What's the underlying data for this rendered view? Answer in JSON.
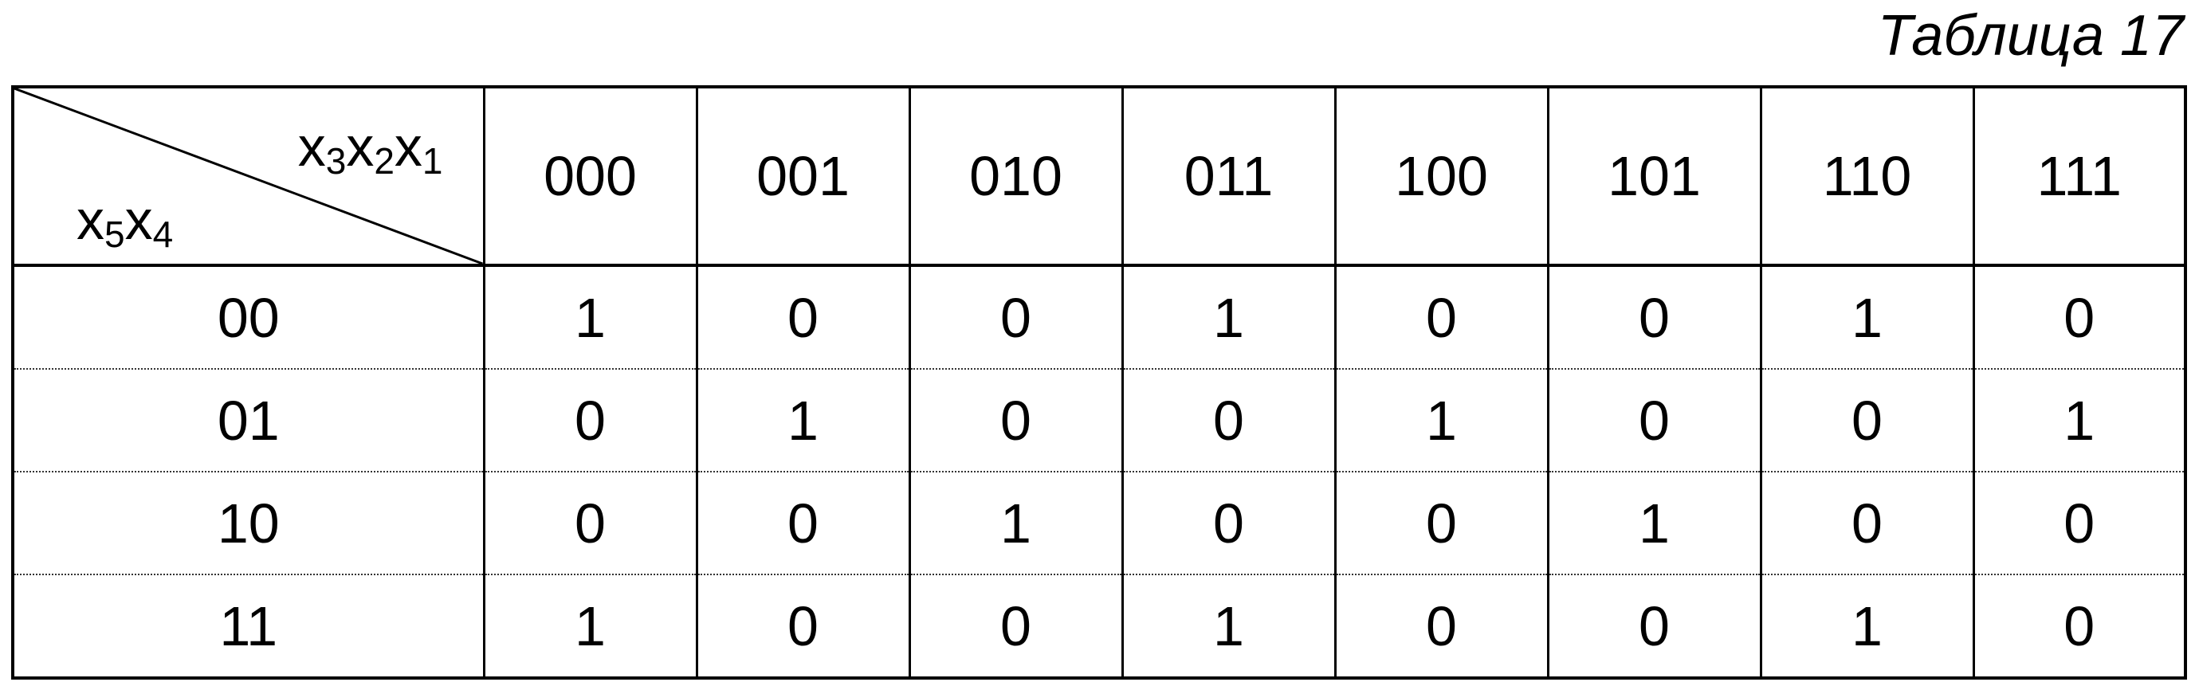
{
  "caption": "Таблица 17",
  "corner": {
    "top_vars": [
      {
        "base": "x",
        "sub": "3"
      },
      {
        "base": "x",
        "sub": "2"
      },
      {
        "base": "x",
        "sub": "1"
      }
    ],
    "bottom_vars": [
      {
        "base": "x",
        "sub": "5"
      },
      {
        "base": "x",
        "sub": "4"
      }
    ]
  },
  "columns": [
    "000",
    "001",
    "010",
    "011",
    "100",
    "101",
    "110",
    "111"
  ],
  "rows": [
    {
      "label": "00",
      "values": [
        "1",
        "0",
        "0",
        "1",
        "0",
        "0",
        "1",
        "0"
      ]
    },
    {
      "label": "01",
      "values": [
        "0",
        "1",
        "0",
        "0",
        "1",
        "0",
        "0",
        "1"
      ]
    },
    {
      "label": "10",
      "values": [
        "0",
        "0",
        "1",
        "0",
        "0",
        "1",
        "0",
        "0"
      ]
    },
    {
      "label": "11",
      "values": [
        "1",
        "0",
        "0",
        "1",
        "0",
        "0",
        "1",
        "0"
      ]
    }
  ]
}
